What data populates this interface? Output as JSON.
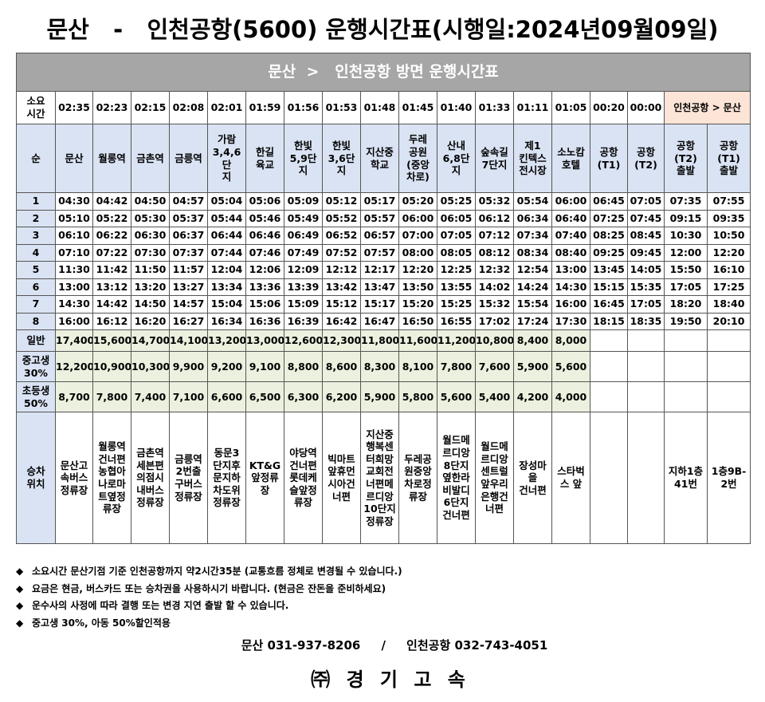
{
  "title": "문산   -   인천공항(5600) 운행시간표(시행일:2024년09월09일)",
  "banner": "문산  >   인천공항 방면 운행시간표",
  "duration_label": "소요\n시간",
  "durations": [
    "02:35",
    "02:23",
    "02:15",
    "02:08",
    "02:01",
    "01:59",
    "01:56",
    "01:53",
    "01:48",
    "01:45",
    "01:40",
    "01:33",
    "01:11",
    "01:05",
    "00:20",
    "00:00"
  ],
  "reverse_label": "인천공항 > 문산",
  "seq_label": "순",
  "stations": [
    "문산",
    "월롱역",
    "금촌역",
    "금릉역",
    "가람\n3,4,6단\n지",
    "한길\n육교",
    "한빛\n5,9단\n지",
    "한빛\n3,6단\n지",
    "지산중\n학교",
    "두레\n공원\n(중앙\n차로)",
    "산내\n6,8단\n지",
    "숲속길\n7단지",
    "제1\n킨텍스\n전시장",
    "소노캄\n호텔",
    "공항\n(T1)",
    "공항\n(T2)",
    "공항\n(T2)\n출발",
    "공항\n(T1)\n출발"
  ],
  "trips": [
    {
      "no": "1",
      "times": [
        "04:30",
        "04:42",
        "04:50",
        "04:57",
        "05:04",
        "05:06",
        "05:09",
        "05:12",
        "05:17",
        "05:20",
        "05:25",
        "05:32",
        "05:54",
        "06:00",
        "06:45",
        "07:05",
        "07:35",
        "07:55"
      ]
    },
    {
      "no": "2",
      "times": [
        "05:10",
        "05:22",
        "05:30",
        "05:37",
        "05:44",
        "05:46",
        "05:49",
        "05:52",
        "05:57",
        "06:00",
        "06:05",
        "06:12",
        "06:34",
        "06:40",
        "07:25",
        "07:45",
        "09:15",
        "09:35"
      ]
    },
    {
      "no": "3",
      "times": [
        "06:10",
        "06:22",
        "06:30",
        "06:37",
        "06:44",
        "06:46",
        "06:49",
        "06:52",
        "06:57",
        "07:00",
        "07:05",
        "07:12",
        "07:34",
        "07:40",
        "08:25",
        "08:45",
        "10:30",
        "10:50"
      ]
    },
    {
      "no": "4",
      "times": [
        "07:10",
        "07:22",
        "07:30",
        "07:37",
        "07:44",
        "07:46",
        "07:49",
        "07:52",
        "07:57",
        "08:00",
        "08:05",
        "08:12",
        "08:34",
        "08:40",
        "09:25",
        "09:45",
        "12:00",
        "12:20"
      ]
    },
    {
      "no": "5",
      "times": [
        "11:30",
        "11:42",
        "11:50",
        "11:57",
        "12:04",
        "12:06",
        "12:09",
        "12:12",
        "12:17",
        "12:20",
        "12:25",
        "12:32",
        "12:54",
        "13:00",
        "13:45",
        "14:05",
        "15:50",
        "16:10"
      ]
    },
    {
      "no": "6",
      "times": [
        "13:00",
        "13:12",
        "13:20",
        "13:27",
        "13:34",
        "13:36",
        "13:39",
        "13:42",
        "13:47",
        "13:50",
        "13:55",
        "14:02",
        "14:24",
        "14:30",
        "15:15",
        "15:35",
        "17:05",
        "17:25"
      ]
    },
    {
      "no": "7",
      "times": [
        "14:30",
        "14:42",
        "14:50",
        "14:57",
        "15:04",
        "15:06",
        "15:09",
        "15:12",
        "15:17",
        "15:20",
        "15:25",
        "15:32",
        "15:54",
        "16:00",
        "16:45",
        "17:05",
        "18:20",
        "18:40"
      ]
    },
    {
      "no": "8",
      "times": [
        "16:00",
        "16:12",
        "16:20",
        "16:27",
        "16:34",
        "16:36",
        "16:39",
        "16:42",
        "16:47",
        "16:50",
        "16:55",
        "17:02",
        "17:24",
        "17:30",
        "18:15",
        "18:35",
        "19:50",
        "20:10"
      ]
    }
  ],
  "fares": [
    {
      "label": "일반",
      "values": [
        "17,400",
        "15,600",
        "14,700",
        "14,100",
        "13,200",
        "13,000",
        "12,600",
        "12,300",
        "11,800",
        "11,600",
        "11,200",
        "10,800",
        "8,400",
        "8,000"
      ]
    },
    {
      "label": "중고생\n30%",
      "values": [
        "12,200",
        "10,900",
        "10,300",
        "9,900",
        "9,200",
        "9,100",
        "8,800",
        "8,600",
        "8,300",
        "8,100",
        "7,800",
        "7,600",
        "5,900",
        "5,600"
      ]
    },
    {
      "label": "초등생\n50%",
      "values": [
        "8,700",
        "7,800",
        "7,400",
        "7,100",
        "6,600",
        "6,500",
        "6,300",
        "6,200",
        "5,900",
        "5,800",
        "5,600",
        "5,400",
        "4,200",
        "4,000"
      ]
    }
  ],
  "stop_label": "승차\n위치",
  "stops": [
    "문산고\n속버스\n정류장",
    "월롱역\n건너편\n농협아\n나로마\n트옆정\n류장",
    "금촌역\n세븐편\n의점시\n내버스\n정류장",
    "금릉역\n2번출\n구버스\n정류장",
    "동문3\n단지후\n문지하\n차도위\n정류장",
    "KT&G\n앞정류\n장",
    "야당역\n건너편\n롯데케\n슬앞정\n류장",
    "빅마트\n앞휴먼\n시아건\n너편",
    "지산중\n행복센\n터희망\n교회전\n너편메\n르디앙\n10단지\n정류장",
    "두레공\n원중앙\n차로정\n류장",
    "월드메\n르디앙\n8단지\n옆한라\n비발디\n6단지\n건너편",
    "월드메\n르디앙\n센트럴\n앞우리\n은행건\n너편",
    "장성마\n을\n건너편",
    "스타벅\n스 앞",
    "",
    "",
    "지하1층\n41번",
    "1층9B-\n2번"
  ],
  "notes": [
    "소요시간 문산기점 기준 인천공항까지 약2시간35분 (교통흐름 정체로 변경될 수 있습니다.)",
    "요금은 현금, 버스카드 또는 승차권을 사용하시기 바랍니다. (현금은 잔돈을 준비하세요)",
    "운수사의 사정에 따라 결행 또는 변경 지연 출발 할 수 있습니다.",
    "중고생 30%, 아동 50%할인적용"
  ],
  "note_bullet": "◆",
  "contact": "문산 031-937-8206     /     인천공항 032-743-4051",
  "company": "㈜ 경 기 고 속"
}
